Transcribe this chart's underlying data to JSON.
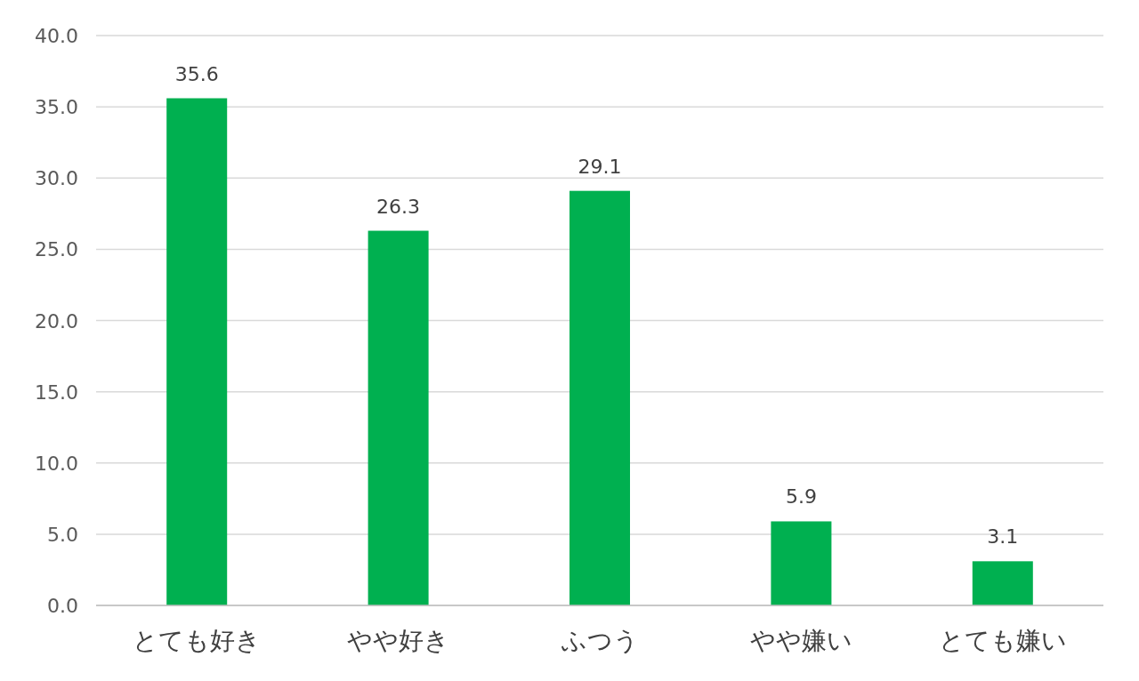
{
  "chart_data": {
    "type": "bar",
    "categories": [
      "とても好き",
      "やや好き",
      "ふつう",
      "やや嫌い",
      "とても嫌い"
    ],
    "values": [
      35.6,
      26.3,
      29.1,
      5.9,
      3.1
    ],
    "color": "#00b050",
    "ylim": [
      0,
      40
    ],
    "yticks": [
      {
        "value": 0,
        "label": "0.0"
      },
      {
        "value": 5,
        "label": "5.0"
      },
      {
        "value": 10,
        "label": "10.0"
      },
      {
        "value": 15,
        "label": "15.0"
      },
      {
        "value": 20,
        "label": "20.0"
      },
      {
        "value": 25,
        "label": "25.0"
      },
      {
        "value": 30,
        "label": "30.0"
      },
      {
        "value": 35,
        "label": "35.0"
      },
      {
        "value": 40,
        "label": "40.0"
      }
    ],
    "grid": "y",
    "data_labels": true
  }
}
